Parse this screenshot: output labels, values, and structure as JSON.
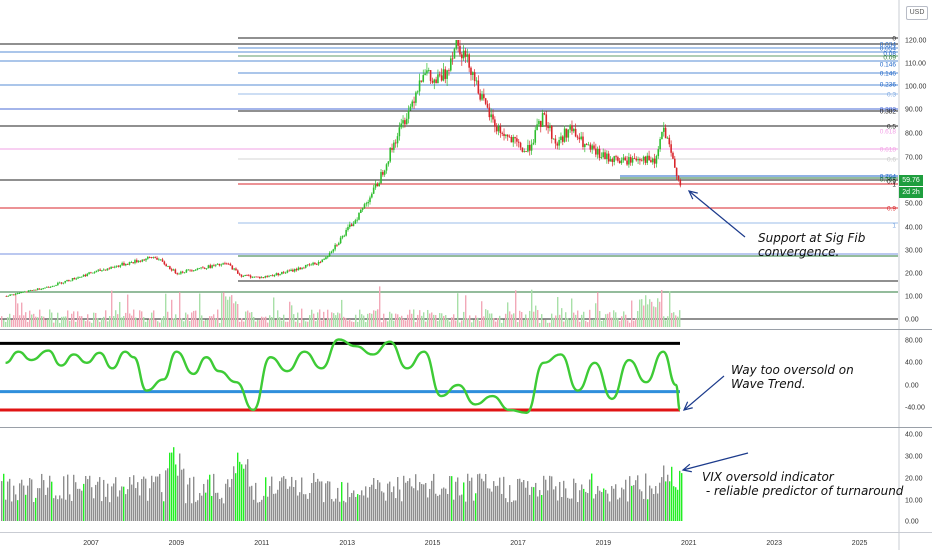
{
  "currency_label": "USD",
  "colors": {
    "up": "#2ebd2e",
    "down": "#d9252b",
    "wave": "#3ecb36",
    "arrow": "#1c3b8c",
    "vix_bar": "#8e8e8e",
    "vix_signal": "#22ee22"
  },
  "chart_data": [
    {
      "type": "line",
      "panel": "price",
      "scale": "log",
      "x_ticks": [
        "2007",
        "2009",
        "2011",
        "2013",
        "2015",
        "2017",
        "2019",
        "2021",
        "2023",
        "2025"
      ],
      "y_ticks": [
        "120.00",
        "110.00",
        "100.00",
        "90.00",
        "80.00",
        "70.00",
        "60.00",
        "50.00",
        "40.00",
        "30.00",
        "20.00",
        "10.00",
        "0.00"
      ],
      "ylim": [
        0,
        120
      ],
      "series": [
        {
          "x": [
            2005.0,
            2006.0,
            2007.0,
            2007.8,
            2008.5,
            2009.0,
            2009.5,
            2010.2,
            2010.5,
            2011.0,
            2011.7,
            2012.4,
            2012.9,
            2013.3,
            2013.7,
            2014.1,
            2014.5,
            2014.8,
            2015.0,
            2015.3,
            2015.55,
            2015.9,
            2016.2,
            2016.5,
            2016.9,
            2017.2,
            2017.6,
            2017.9,
            2018.2,
            2018.6,
            2019.0,
            2019.5,
            2019.9,
            2020.2,
            2020.4,
            2020.6,
            2020.85
          ],
          "y": [
            10,
            14,
            20,
            24,
            27,
            20,
            22,
            24,
            19,
            18,
            21,
            25,
            36,
            46,
            58,
            76,
            92,
            108,
            101,
            105,
            120,
            108,
            92,
            82,
            76,
            72,
            87,
            75,
            82,
            74,
            70,
            68,
            70,
            67,
            82,
            70,
            55.5
          ]
        }
      ],
      "current_price": "59.76",
      "countdown": "2d 2h",
      "fib_set_1": [
        "0",
        "0.034",
        "0.054",
        "0.08",
        "0.09",
        "0.146",
        "0.146",
        "0.236",
        "0.3",
        "0.382",
        "0.382",
        "0.5",
        "0.618",
        "0.618",
        "0.6",
        "0.764",
        "0.764",
        "0.9",
        "1",
        "0.9",
        "1"
      ],
      "annotations": [
        "Support at Sig Fib\nconvergence."
      ]
    },
    {
      "type": "line",
      "panel": "wave_trend",
      "y_ticks": [
        "80.00",
        "40.00",
        "0.00",
        "-40.00"
      ],
      "ylim": [
        -55,
        85
      ],
      "series": [
        {
          "x": [
            2005.0,
            2005.3,
            2005.6,
            2006.0,
            2006.3,
            2006.6,
            2006.9,
            2007.2,
            2007.5,
            2007.8,
            2008.0,
            2008.3,
            2008.7,
            2009.0,
            2009.4,
            2009.7,
            2010.0,
            2010.4,
            2010.8,
            2011.2,
            2011.6,
            2012.0,
            2012.4,
            2012.8,
            2013.2,
            2013.6,
            2014.0,
            2014.4,
            2014.8,
            2015.2,
            2015.6,
            2016.0,
            2016.4,
            2016.8,
            2017.2,
            2017.6,
            2018.0,
            2018.4,
            2018.8,
            2019.2,
            2019.6,
            2020.0,
            2020.4,
            2020.7,
            2020.85
          ],
          "y": [
            40,
            60,
            45,
            62,
            35,
            55,
            40,
            58,
            30,
            60,
            50,
            -10,
            10,
            60,
            20,
            50,
            25,
            5,
            -45,
            50,
            25,
            60,
            30,
            82,
            70,
            55,
            78,
            30,
            60,
            -20,
            0,
            -35,
            -20,
            -45,
            -50,
            40,
            55,
            -10,
            40,
            -25,
            45,
            5,
            60,
            0,
            -45
          ]
        }
      ],
      "hline_values": [
        75,
        -12,
        -45
      ],
      "annotations": [
        "Way too oversold on\nWave Trend."
      ]
    },
    {
      "type": "bar",
      "panel": "vix_oversold",
      "y_ticks": [
        "40.00",
        "30.00",
        "20.00",
        "10.00",
        "0.00"
      ],
      "ylim": [
        0,
        40
      ],
      "annotations": [
        "VIX oversold indicator\n - reliable predictor of turnaround"
      ]
    }
  ]
}
